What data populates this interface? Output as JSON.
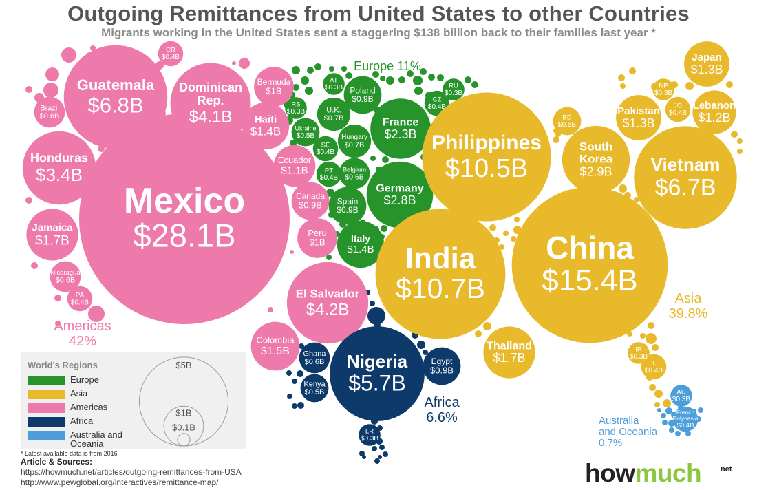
{
  "title": "Outgoing Remittances from United States to other Countries",
  "subtitle": "Migrants working in the United States sent a staggering $138 billion back to their families last year *",
  "region_colors": {
    "Europe": "#27942b",
    "Asia": "#e8b92a",
    "Americas": "#ee7aab",
    "Africa": "#0d3a6b",
    "Oceania": "#4d9fdc"
  },
  "chart_data": {
    "type": "bubble",
    "unit": "billion USD",
    "region_totals": [
      {
        "name": "Americas",
        "label": "Americas",
        "share": "42%"
      },
      {
        "name": "Europe",
        "label": "Europe",
        "share": "11%"
      },
      {
        "name": "Asia",
        "label": "Asia",
        "share": "39.8%"
      },
      {
        "name": "Africa",
        "label": "Africa",
        "share": "6.6%"
      },
      {
        "name": "Oceania",
        "label": "Australia and Oceania",
        "share": "0.7%"
      }
    ],
    "countries": [
      {
        "name": "Mexico",
        "value": 28.1,
        "label": "$28.1B",
        "region": "Americas"
      },
      {
        "name": "Guatemala",
        "value": 6.8,
        "label": "$6.8B",
        "region": "Americas"
      },
      {
        "name": "Dominican Rep.",
        "value": 4.1,
        "label": "$4.1B",
        "region": "Americas"
      },
      {
        "name": "El Salvador",
        "value": 4.2,
        "label": "$4.2B",
        "region": "Americas"
      },
      {
        "name": "Honduras",
        "value": 3.4,
        "label": "$3.4B",
        "region": "Americas"
      },
      {
        "name": "Jamaica",
        "value": 1.7,
        "label": "$1.7B",
        "region": "Americas"
      },
      {
        "name": "Colombia",
        "value": 1.5,
        "label": "$1.5B",
        "region": "Americas"
      },
      {
        "name": "Haiti",
        "value": 1.4,
        "label": "$1.4B",
        "region": "Americas"
      },
      {
        "name": "Ecuador",
        "value": 1.1,
        "label": "$1.1B",
        "region": "Americas"
      },
      {
        "name": "Bermuda",
        "value": 1.0,
        "label": "$1B",
        "region": "Americas"
      },
      {
        "name": "Peru",
        "value": 1.0,
        "label": "$1B",
        "region": "Americas"
      },
      {
        "name": "Canada",
        "value": 0.9,
        "label": "$0.9B",
        "region": "Americas"
      },
      {
        "name": "Brazil",
        "value": 0.6,
        "label": "$0.6B",
        "region": "Americas"
      },
      {
        "name": "Nicaragua",
        "value": 0.6,
        "label": "$0.6B",
        "region": "Americas"
      },
      {
        "name": "PA",
        "value": 0.4,
        "label": "$0.4B",
        "region": "Americas"
      },
      {
        "name": "CR",
        "value": 0.4,
        "label": "$0.4B",
        "region": "Americas"
      },
      {
        "name": "Germany",
        "value": 2.8,
        "label": "$2.8B",
        "region": "Europe"
      },
      {
        "name": "France",
        "value": 2.3,
        "label": "$2.3B",
        "region": "Europe"
      },
      {
        "name": "Italy",
        "value": 1.4,
        "label": "$1.4B",
        "region": "Europe"
      },
      {
        "name": "Poland",
        "value": 0.9,
        "label": "$0.9B",
        "region": "Europe"
      },
      {
        "name": "Spain",
        "value": 0.9,
        "label": "$0.9B",
        "region": "Europe"
      },
      {
        "name": "U.K.",
        "value": 0.7,
        "label": "$0.7B",
        "region": "Europe"
      },
      {
        "name": "Hungary",
        "value": 0.7,
        "label": "$0.7B",
        "region": "Europe"
      },
      {
        "name": "Belgium",
        "value": 0.6,
        "label": "$0.6B",
        "region": "Europe"
      },
      {
        "name": "Ukraine",
        "value": 0.5,
        "label": "$0.5B",
        "region": "Europe"
      },
      {
        "name": "CZ",
        "value": 0.4,
        "label": "$0.4B",
        "region": "Europe"
      },
      {
        "name": "SE",
        "value": 0.4,
        "label": "$0.4B",
        "region": "Europe"
      },
      {
        "name": "PT",
        "value": 0.4,
        "label": "$0.4B",
        "region": "Europe"
      },
      {
        "name": "AT",
        "value": 0.3,
        "label": "$0.3B",
        "region": "Europe"
      },
      {
        "name": "RU",
        "value": 0.3,
        "label": "$0.3B",
        "region": "Europe"
      },
      {
        "name": "RS",
        "value": 0.3,
        "label": "$0.3B",
        "region": "Europe"
      },
      {
        "name": "China",
        "value": 15.4,
        "label": "$15.4B",
        "region": "Asia"
      },
      {
        "name": "India",
        "value": 10.7,
        "label": "$10.7B",
        "region": "Asia"
      },
      {
        "name": "Philippines",
        "value": 10.5,
        "label": "$10.5B",
        "region": "Asia"
      },
      {
        "name": "Vietnam",
        "value": 6.7,
        "label": "$6.7B",
        "region": "Asia"
      },
      {
        "name": "South Korea",
        "value": 2.9,
        "label": "$2.9B",
        "region": "Asia"
      },
      {
        "name": "Thailand",
        "value": 1.7,
        "label": "$1.7B",
        "region": "Asia"
      },
      {
        "name": "Japan",
        "value": 1.3,
        "label": "$1.3B",
        "region": "Asia"
      },
      {
        "name": "Pakistan",
        "value": 1.3,
        "label": "$1.3B",
        "region": "Asia"
      },
      {
        "name": "Lebanon",
        "value": 1.2,
        "label": "$1.2B",
        "region": "Asia"
      },
      {
        "name": "BD",
        "value": 0.5,
        "label": "$0.5B",
        "region": "Asia"
      },
      {
        "name": "JO",
        "value": 0.4,
        "label": "$0.4B",
        "region": "Asia"
      },
      {
        "name": "IL",
        "value": 0.4,
        "label": "$0.4B",
        "region": "Asia"
      },
      {
        "name": "NP",
        "value": 0.3,
        "label": "$0.3B",
        "region": "Asia"
      },
      {
        "name": "IR",
        "value": 0.3,
        "label": "$0.3B",
        "region": "Asia"
      },
      {
        "name": "Nigeria",
        "value": 5.7,
        "label": "$5.7B",
        "region": "Africa"
      },
      {
        "name": "Egypt",
        "value": 0.9,
        "label": "$0.9B",
        "region": "Africa"
      },
      {
        "name": "Ghana",
        "value": 0.6,
        "label": "$0.6B",
        "region": "Africa"
      },
      {
        "name": "Kenya",
        "value": 0.5,
        "label": "$0.5B",
        "region": "Africa"
      },
      {
        "name": "LR",
        "value": 0.3,
        "label": "$0.3B",
        "region": "Africa"
      },
      {
        "name": "French Polynesia",
        "value": 0.4,
        "label": "$0.4B",
        "region": "Oceania"
      },
      {
        "name": "AU",
        "value": 0.3,
        "label": "$0.3B",
        "region": "Oceania"
      }
    ],
    "size_legend": [
      {
        "label": "$5B",
        "value": 5
      },
      {
        "label": "$1B",
        "value": 1
      },
      {
        "label": "$0.1B",
        "value": 0.1
      }
    ]
  },
  "legend": {
    "title": "World's Regions",
    "items": [
      {
        "label": "Europe",
        "color": "#27942b"
      },
      {
        "label": "Asia",
        "color": "#e8b92a"
      },
      {
        "label": "Americas",
        "color": "#ee7aab"
      },
      {
        "label": "Africa",
        "color": "#0d3a6b"
      },
      {
        "label": "Australia and Oceania",
        "color": "#4d9fdc"
      }
    ]
  },
  "footnote": "* Latest available data is from 2016",
  "sources": {
    "heading": "Article & Sources:",
    "lines": [
      "https://howmuch.net/articles/outgoing-remittances-from-USA",
      "http://www.pewglobal.org/interactives/remittance-map/"
    ]
  },
  "logo": {
    "how": "how",
    "much": "much",
    "net": "net"
  }
}
